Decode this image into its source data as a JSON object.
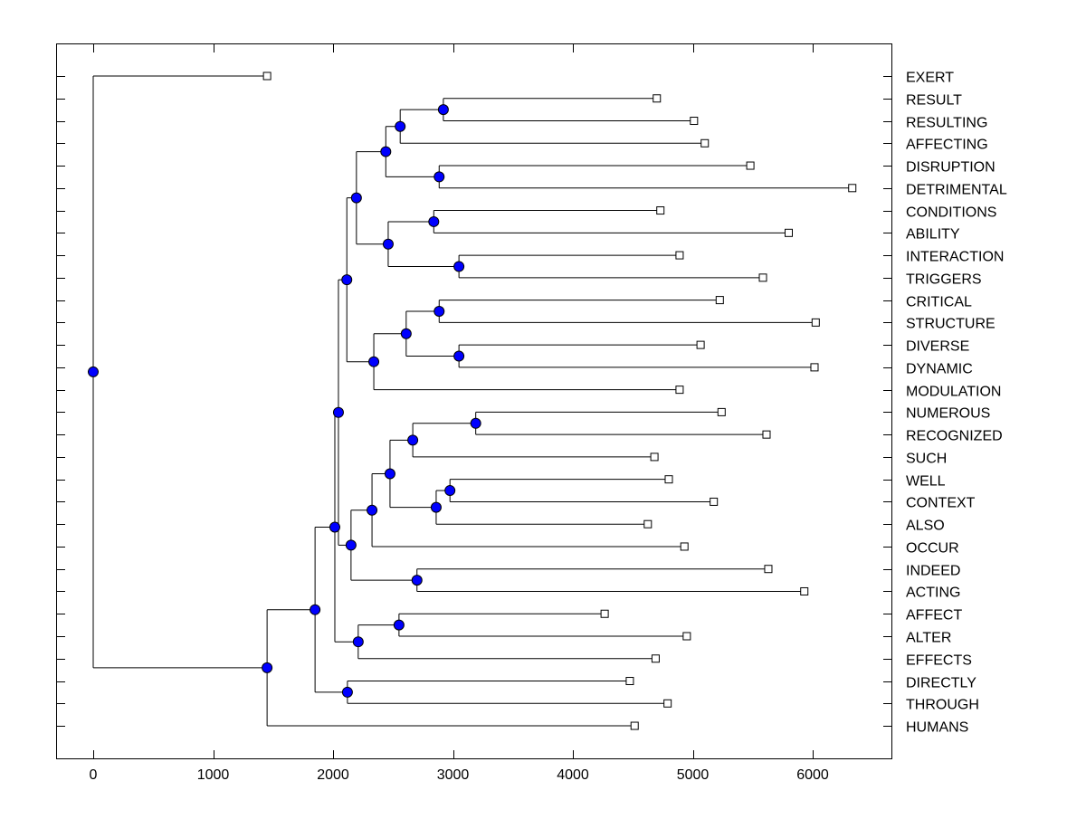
{
  "chart_data": {
    "type": "dendrogram",
    "orientation": "horizontal",
    "xlim": [
      -300,
      6650
    ],
    "x_ticks": [
      0,
      1000,
      2000,
      3000,
      4000,
      5000,
      6000
    ],
    "grid": false,
    "colors": {
      "node_fill": "#0000ff",
      "line": "#000000",
      "leaf_fill": "#ffffff"
    },
    "leaf_order": [
      "EXERT",
      "RESULT",
      "RESULTING",
      "AFFECTING",
      "DISRUPTION",
      "DETRIMENTAL",
      "CONDITIONS",
      "ABILITY",
      "INTERACTION",
      "TRIGGERS",
      "CRITICAL",
      "STRUCTURE",
      "DIVERSE",
      "DYNAMIC",
      "MODULATION",
      "NUMEROUS",
      "RECOGNIZED",
      "SUCH",
      "WELL",
      "CONTEXT",
      "ALSO",
      "OCCUR",
      "INDEED",
      "ACTING",
      "AFFECT",
      "ALTER",
      "EFFECTS",
      "DIRECTLY",
      "THROUGH",
      "HUMANS"
    ],
    "tree": {
      "h": 0,
      "c": [
        {
          "leaf": "EXERT",
          "v": 1450
        },
        {
          "h": 1450,
          "c": [
            {
              "h": 1850,
              "c": [
                {
                  "h": 2015,
                  "c": [
                    {
                      "h": 2045,
                      "c": [
                        {
                          "h": 2115,
                          "c": [
                            {
                              "h": 2195,
                              "c": [
                                {
                                  "h": 2440,
                                  "c": [
                                    {
                                      "h": 2560,
                                      "c": [
                                        {
                                          "h": 2920,
                                          "c": [
                                            {
                                              "leaf": "RESULT",
                                              "v": 4700
                                            },
                                            {
                                              "leaf": "RESULTING",
                                              "v": 5010
                                            }
                                          ]
                                        },
                                        {
                                          "leaf": "AFFECTING",
                                          "v": 5100
                                        }
                                      ]
                                    },
                                    {
                                      "h": 2885,
                                      "c": [
                                        {
                                          "leaf": "DISRUPTION",
                                          "v": 5480
                                        },
                                        {
                                          "leaf": "DETRIMENTAL",
                                          "v": 6330
                                        }
                                      ]
                                    }
                                  ]
                                },
                                {
                                  "h": 2460,
                                  "c": [
                                    {
                                      "h": 2840,
                                      "c": [
                                        {
                                          "leaf": "CONDITIONS",
                                          "v": 4730
                                        },
                                        {
                                          "leaf": "ABILITY",
                                          "v": 5800
                                        }
                                      ]
                                    },
                                    {
                                      "h": 3050,
                                      "c": [
                                        {
                                          "leaf": "INTERACTION",
                                          "v": 4890
                                        },
                                        {
                                          "leaf": "TRIGGERS",
                                          "v": 5585
                                        }
                                      ]
                                    }
                                  ]
                                }
                              ]
                            },
                            {
                              "h": 2340,
                              "c": [
                                {
                                  "h": 2610,
                                  "c": [
                                    {
                                      "h": 2885,
                                      "c": [
                                        {
                                          "leaf": "CRITICAL",
                                          "v": 5225
                                        },
                                        {
                                          "leaf": "STRUCTURE",
                                          "v": 6025
                                        }
                                      ]
                                    },
                                    {
                                      "h": 3050,
                                      "c": [
                                        {
                                          "leaf": "DIVERSE",
                                          "v": 5065
                                        },
                                        {
                                          "leaf": "DYNAMIC",
                                          "v": 6015
                                        }
                                      ]
                                    }
                                  ]
                                },
                                {
                                  "leaf": "MODULATION",
                                  "v": 4890
                                }
                              ]
                            }
                          ]
                        },
                        {
                          "h": 2150,
                          "c": [
                            {
                              "h": 2325,
                              "c": [
                                {
                                  "h": 2475,
                                  "c": [
                                    {
                                      "h": 2665,
                                      "c": [
                                        {
                                          "h": 3190,
                                          "c": [
                                            {
                                              "leaf": "NUMEROUS",
                                              "v": 5240
                                            },
                                            {
                                              "leaf": "RECOGNIZED",
                                              "v": 5615
                                            }
                                          ]
                                        },
                                        {
                                          "leaf": "SUCH",
                                          "v": 4680
                                        }
                                      ]
                                    },
                                    {
                                      "h": 2860,
                                      "c": [
                                        {
                                          "h": 2975,
                                          "c": [
                                            {
                                              "leaf": "WELL",
                                              "v": 4800
                                            },
                                            {
                                              "leaf": "CONTEXT",
                                              "v": 5175
                                            }
                                          ]
                                        },
                                        {
                                          "leaf": "ALSO",
                                          "v": 4625
                                        }
                                      ]
                                    }
                                  ]
                                },
                                {
                                  "leaf": "OCCUR",
                                  "v": 4930
                                }
                              ]
                            },
                            {
                              "h": 2700,
                              "c": [
                                {
                                  "leaf": "INDEED",
                                  "v": 5630
                                },
                                {
                                  "leaf": "ACTING",
                                  "v": 5930
                                }
                              ]
                            }
                          ]
                        }
                      ]
                    },
                    {
                      "h": 2210,
                      "c": [
                        {
                          "h": 2550,
                          "c": [
                            {
                              "leaf": "AFFECT",
                              "v": 4265
                            },
                            {
                              "leaf": "ALTER",
                              "v": 4950
                            }
                          ]
                        },
                        {
                          "leaf": "EFFECTS",
                          "v": 4690
                        }
                      ]
                    }
                  ]
                },
                {
                  "h": 2120,
                  "c": [
                    {
                      "leaf": "DIRECTLY",
                      "v": 4475
                    },
                    {
                      "leaf": "THROUGH",
                      "v": 4790
                    }
                  ]
                }
              ]
            },
            {
              "leaf": "HUMANS",
              "v": 4515
            }
          ]
        }
      ]
    }
  }
}
